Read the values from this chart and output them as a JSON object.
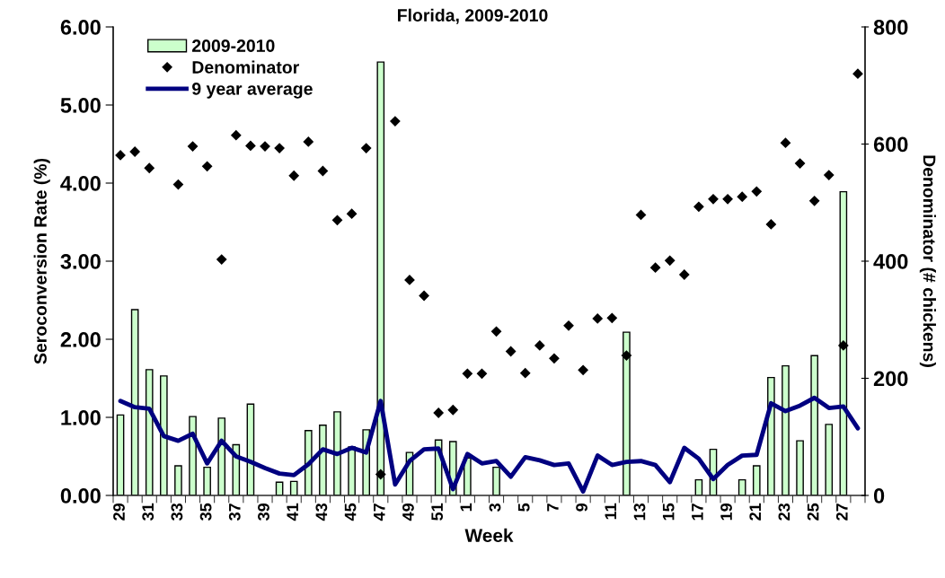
{
  "chart_data": {
    "type": "bar",
    "title": "Florida, 2009-2010",
    "xlabel": "Week",
    "ylabel": "Seroconversion Rate (%)",
    "y2label": "Denominator (# chickens)",
    "categories": [
      "29",
      null,
      "31",
      null,
      "33",
      null,
      "35",
      null,
      "37",
      null,
      "39",
      null,
      "41",
      null,
      "43",
      null,
      "45",
      null,
      "47",
      null,
      "49",
      null,
      "51",
      null,
      "1",
      null,
      "3",
      null,
      "5",
      null,
      "7",
      null,
      "9",
      null,
      "11",
      null,
      "13",
      null,
      "15",
      null,
      "17",
      null,
      "19",
      null,
      "21",
      null,
      "23",
      null,
      "25",
      null,
      "27",
      null
    ],
    "series": [
      {
        "name": "2009-2010",
        "color": "#ccffcc",
        "values": [
          1.03,
          2.38,
          1.61,
          1.53,
          0.38,
          1.01,
          0.36,
          0.99,
          0.65,
          1.17,
          0,
          0.17,
          0.18,
          0.83,
          0.9,
          1.07,
          0.62,
          0.84,
          5.55,
          0,
          0.55,
          0,
          0.71,
          0.69,
          0.48,
          0,
          0.36,
          0,
          0,
          0,
          0,
          0,
          0,
          0,
          0,
          2.09,
          0,
          0,
          0,
          0,
          0.2,
          0.59,
          0,
          0.2,
          0.38,
          1.51,
          1.66,
          0.7,
          1.79,
          0.91,
          3.89,
          0
        ]
      },
      {
        "name": "Denominator",
        "type": "scatter",
        "axis": "y2",
        "color": "#000000",
        "marker": "diamond",
        "values": [
          581,
          587,
          559,
          null,
          531,
          596,
          562,
          403,
          615,
          597,
          596,
          593,
          546,
          604,
          554,
          470,
          481,
          593,
          36,
          639,
          368,
          341,
          141,
          146,
          208,
          208,
          280,
          246,
          209,
          256,
          234,
          290,
          214,
          302,
          303,
          239,
          479,
          389,
          401,
          377,
          493,
          506,
          506,
          510,
          519,
          463,
          602,
          567,
          503,
          547,
          256,
          720
        ]
      },
      {
        "name": "9 year average",
        "type": "line",
        "color": "#000080",
        "line_style": "solid",
        "values": [
          1.21,
          1.13,
          1.11,
          0.76,
          0.7,
          0.79,
          0.41,
          0.7,
          0.5,
          0.43,
          0.35,
          0.28,
          0.26,
          0.4,
          0.59,
          0.53,
          0.61,
          0.55,
          1.21,
          0.14,
          0.44,
          0.59,
          0.6,
          0.08,
          0.53,
          0.41,
          0.44,
          0.24,
          0.49,
          0.45,
          0.39,
          0.41,
          0.05,
          0.51,
          0.39,
          0.43,
          0.44,
          0.39,
          0.17,
          0.61,
          0.47,
          0.21,
          0.39,
          0.51,
          0.52,
          1.18,
          1.08,
          1.15,
          1.25,
          1.12,
          1.14,
          0.86
        ]
      }
    ],
    "ylim": [
      0,
      6
    ],
    "yticks": [
      {
        "value": 0,
        "label": "0.00"
      },
      {
        "value": 1,
        "label": "1.00"
      },
      {
        "value": 2,
        "label": "2.00"
      },
      {
        "value": 3,
        "label": "3.00"
      },
      {
        "value": 4,
        "label": "4.00"
      },
      {
        "value": 5,
        "label": "5.00"
      },
      {
        "value": 6,
        "label": "6.00"
      }
    ],
    "y2lim": [
      0,
      800
    ],
    "y2ticks": [
      0,
      200,
      400,
      600,
      800
    ],
    "grid": false,
    "legend": "top left"
  }
}
